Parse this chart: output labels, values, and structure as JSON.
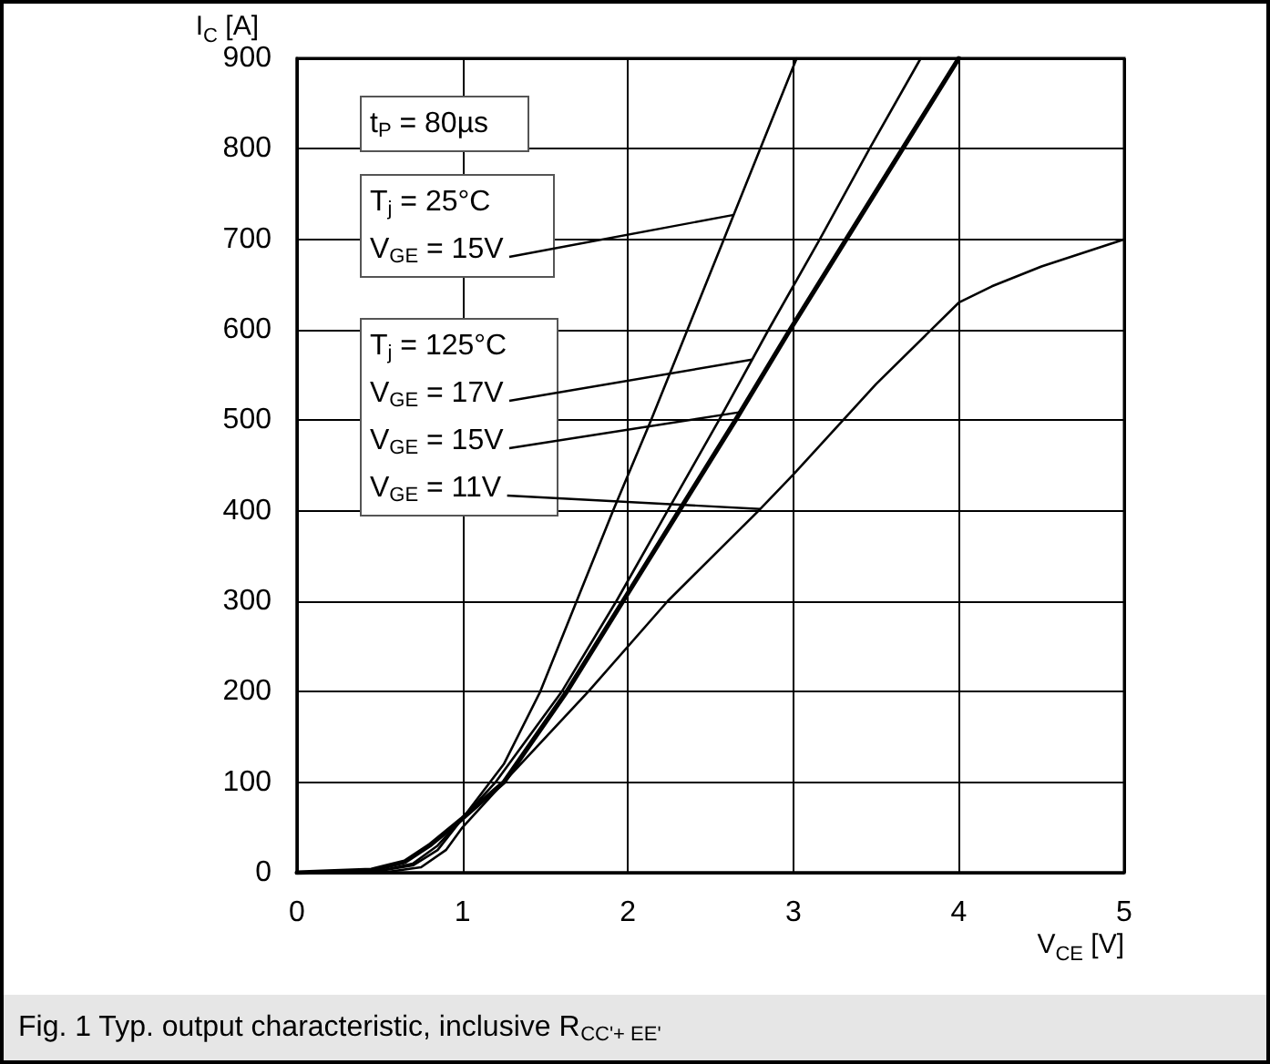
{
  "chart_data": {
    "type": "line",
    "xlabel": "V$_{CE}$ [V]",
    "ylabel": "I$_{C}$ [A]",
    "series": [
      {
        "color": "#000000",
        "x": [
          0,
          0.5,
          0.7,
          0.85,
          1,
          1.25,
          1.47,
          1.69,
          1.91,
          2.14,
          2.36,
          2.58,
          2.8,
          3.02
        ],
        "values": [
          0,
          2,
          10,
          30,
          60,
          120,
          200,
          300,
          400,
          500,
          600,
          700,
          800,
          900
        ]
      },
      {
        "color": "#000000",
        "x": [
          0,
          0.5,
          0.7,
          0.85,
          1,
          1.2,
          1.6,
          1.93,
          2.24,
          2.55,
          2.85,
          3.16,
          3.46,
          3.77
        ],
        "values": [
          0,
          2,
          8,
          25,
          60,
          100,
          200,
          300,
          400,
          500,
          600,
          700,
          800,
          900
        ]
      },
      {
        "color": "#000000",
        "x": [
          0,
          0.45,
          0.65,
          0.8,
          1,
          1.25,
          1.63,
          1.97,
          2.31,
          2.65,
          2.98,
          3.32,
          3.66,
          4.0
        ],
        "values": [
          0,
          3,
          12,
          30,
          60,
          100,
          200,
          300,
          400,
          500,
          600,
          700,
          800,
          900
        ]
      },
      {
        "color": "#000000",
        "x": [
          0,
          0.55,
          0.75,
          0.9,
          1,
          1.25,
          1.76,
          2.24,
          2.79,
          3.0,
          3.5,
          4.0,
          4.2,
          4.5,
          5.0
        ],
        "values": [
          0,
          1,
          6,
          25,
          50,
          100,
          200,
          300,
          400,
          440,
          540,
          630,
          648,
          670,
          700
        ]
      }
    ],
    "xlim": [
      0,
      5
    ],
    "xticks": [
      0,
      1,
      2,
      3,
      4,
      5
    ],
    "ylim": [
      0,
      900
    ],
    "yticks": [
      0,
      100,
      200,
      300,
      400,
      500,
      600,
      700,
      800,
      900
    ],
    "grid": true,
    "marker": "none",
    "line_style": "solid",
    "annotations": [
      "t$_{P}$ = 80µs",
      "T$_{j}$ = 25°C",
      {
        "text": "V$_{GE}$ = 15V",
        "x": 2.64,
        "y": 727
      },
      "T$_{j}$ = 125°C",
      {
        "text": "V$_{GE}$ = 17V",
        "x": 2.75,
        "y": 567
      },
      {
        "text": "V$_{GE}$ = 15V",
        "x": 2.68,
        "y": 509
      },
      {
        "text": "V$_{GE}$ = 11V",
        "x": 2.8,
        "y": 402
      },
      "Fig. 1 Typ. output characteristic, inclusive R$_{CC'+ EE'}$"
    ]
  }
}
